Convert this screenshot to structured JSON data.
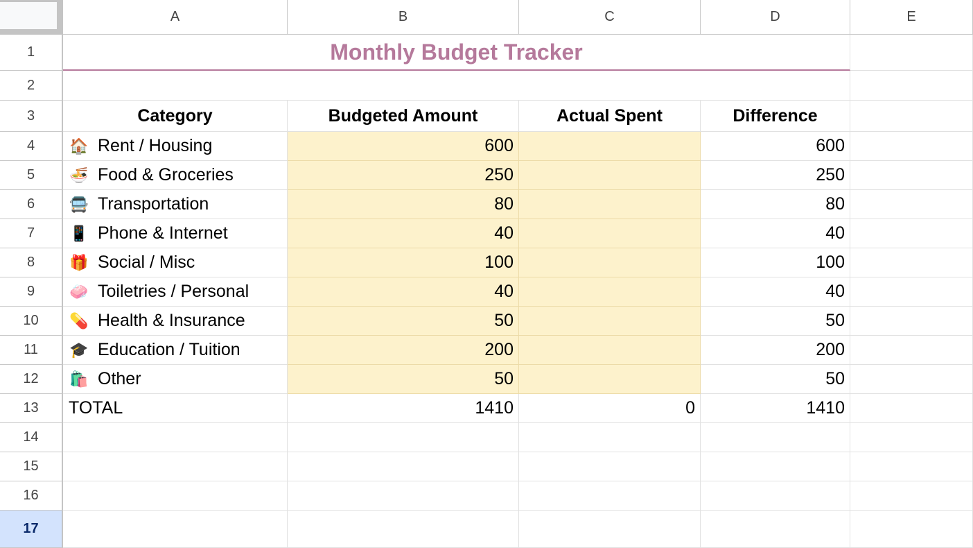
{
  "columns": [
    "A",
    "B",
    "C",
    "D",
    "E"
  ],
  "row_numbers": [
    "1",
    "2",
    "3",
    "4",
    "5",
    "6",
    "7",
    "8",
    "9",
    "10",
    "11",
    "12",
    "13",
    "14",
    "15",
    "16",
    "17"
  ],
  "selected_row": "17",
  "title": "Monthly Budget Tracker",
  "headers": {
    "category": "Category",
    "budgeted": "Budgeted Amount",
    "actual": "Actual Spent",
    "difference": "Difference"
  },
  "items": [
    {
      "icon": "house-icon",
      "glyph": "🏠",
      "category": "Rent / Housing",
      "budgeted": "600",
      "actual": "",
      "difference": "600"
    },
    {
      "icon": "noodle-bowl-icon",
      "glyph": "🍜",
      "category": "Food & Groceries",
      "budgeted": "250",
      "actual": "",
      "difference": "250"
    },
    {
      "icon": "bus-icon",
      "glyph": "🚍",
      "category": "Transportation",
      "budgeted": "80",
      "actual": "",
      "difference": "80"
    },
    {
      "icon": "mobile-phone-icon",
      "glyph": "📱",
      "category": "Phone & Internet",
      "budgeted": "40",
      "actual": "",
      "difference": "40"
    },
    {
      "icon": "gift-icon",
      "glyph": "🎁",
      "category": "Social / Misc",
      "budgeted": "100",
      "actual": "",
      "difference": "100"
    },
    {
      "icon": "soap-icon",
      "glyph": "🧼",
      "category": "Toiletries / Personal",
      "budgeted": "40",
      "actual": "",
      "difference": "40"
    },
    {
      "icon": "pill-icon",
      "glyph": "💊",
      "category": "Health & Insurance",
      "budgeted": "50",
      "actual": "",
      "difference": "50"
    },
    {
      "icon": "graduation-cap-icon",
      "glyph": "🎓",
      "category": "Education / Tuition",
      "budgeted": "200",
      "actual": "",
      "difference": "200"
    },
    {
      "icon": "shopping-bags-icon",
      "glyph": "🛍️",
      "category": "Other",
      "budgeted": "50",
      "actual": "",
      "difference": "50"
    }
  ],
  "total": {
    "label": "TOTAL",
    "budgeted": "1410",
    "actual": "0",
    "difference": "1410"
  },
  "colors": {
    "title": "#b5799b",
    "input_fill": "#fdf2cc",
    "selected_row_header": "#d3e3fd"
  }
}
